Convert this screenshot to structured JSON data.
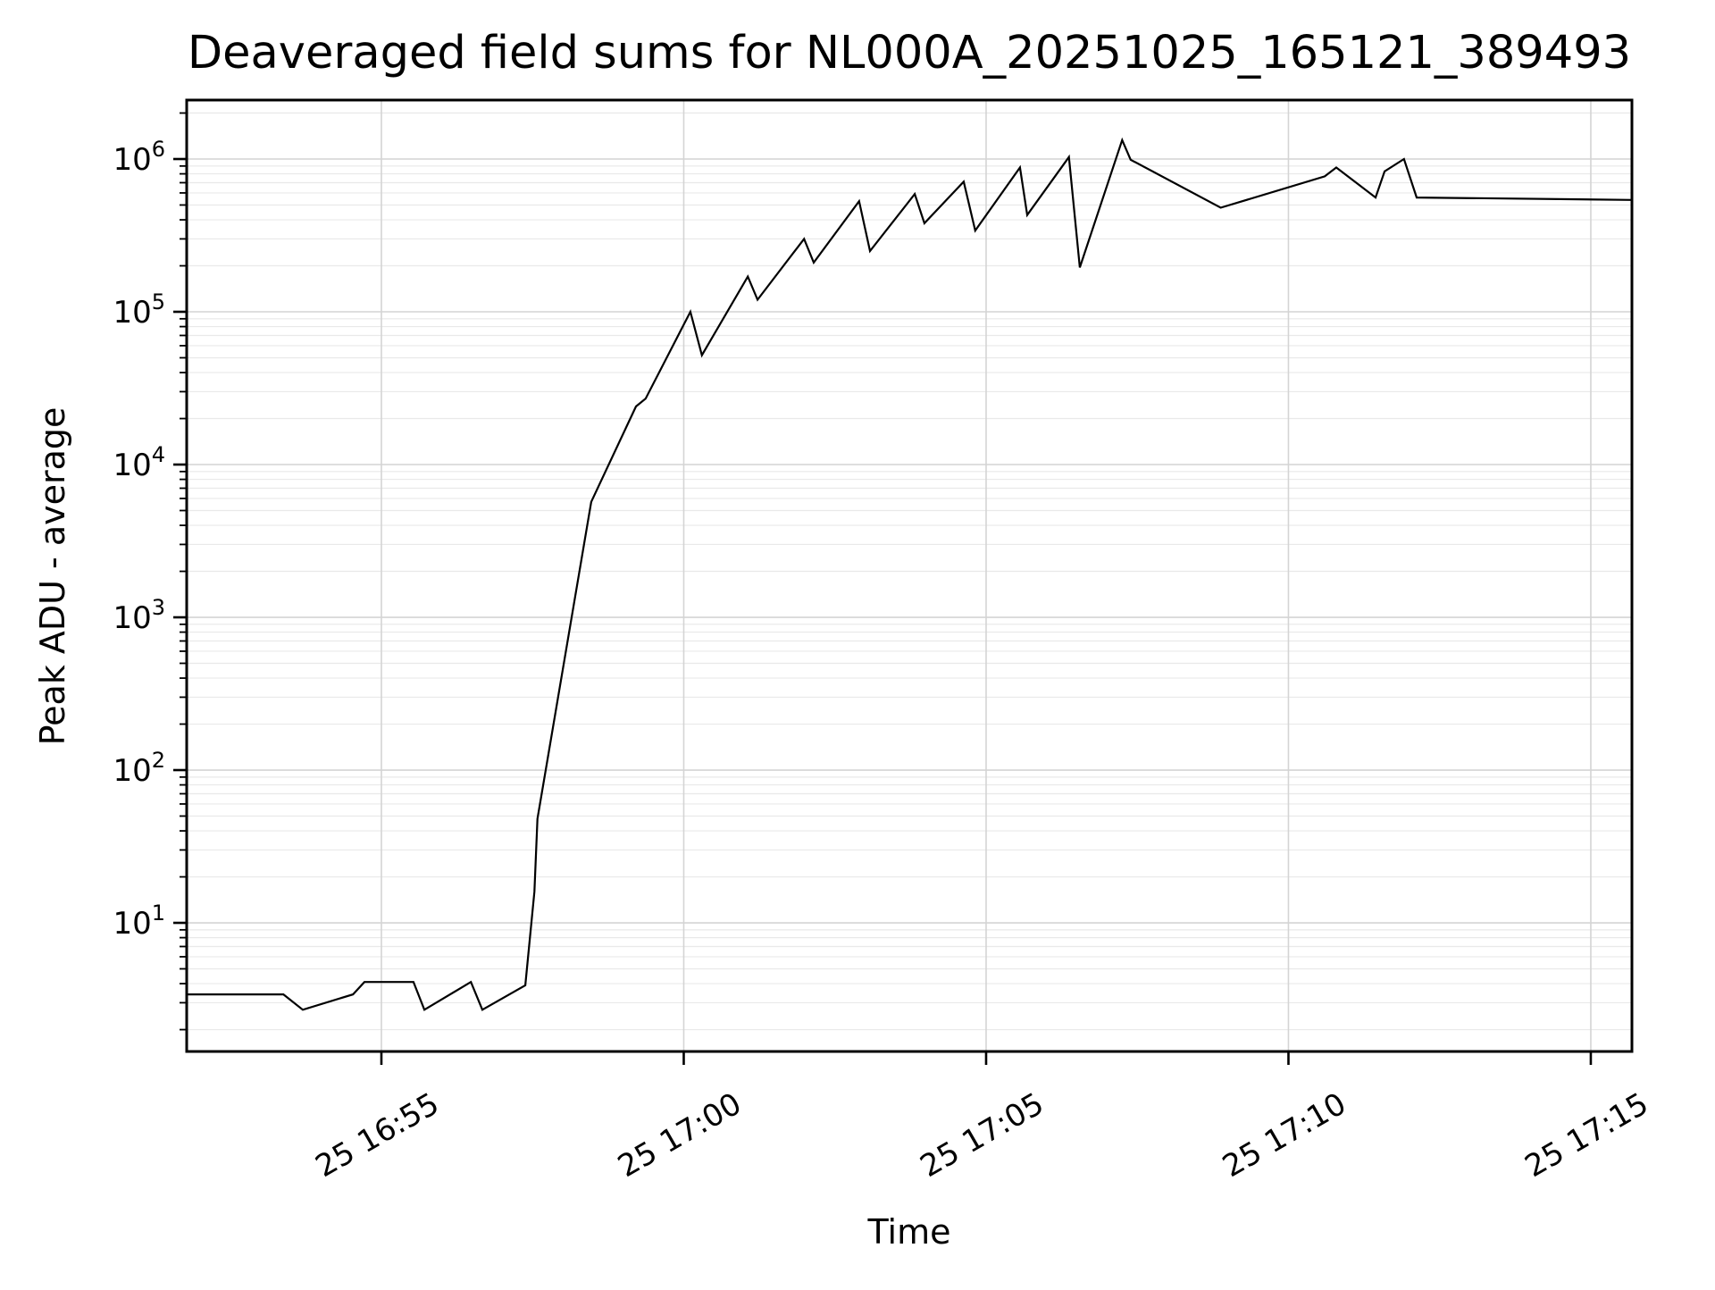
{
  "page": {
    "background": "#ffffff"
  },
  "chart_data": {
    "type": "line",
    "title": "Deaveraged field sums for NL000A_20251025_165121_389493",
    "xlabel": "Time",
    "ylabel": "Peak ADU - average",
    "yscale": "log",
    "grid": "both",
    "legend": "none",
    "x_unit": "minutes after 2025-10-25 16:50 (labels show day-of-month and HH:MM)",
    "xlim": [
      1.78,
      25.68
    ],
    "ylim_log10": [
      0.158,
      6.386
    ],
    "x_ticks": [
      {
        "t": 5,
        "label": "25 16:55"
      },
      {
        "t": 10,
        "label": "25 17:00"
      },
      {
        "t": 15,
        "label": "25 17:05"
      },
      {
        "t": 20,
        "label": "25 17:10"
      },
      {
        "t": 25,
        "label": "25 17:15"
      }
    ],
    "y_tick_base": "10",
    "y_tick_exponents": [
      6,
      5,
      4,
      3,
      2,
      1
    ],
    "colors": {
      "line": "#000000",
      "spine": "#000000",
      "tick": "#000000",
      "grid_major": "#d4d4d4",
      "grid_minor": "#e9e9e9",
      "background": "#ffffff"
    },
    "series": [
      {
        "points": [
          [
            1.78,
            3.4
          ],
          [
            3.38,
            3.4
          ],
          [
            3.7,
            2.7
          ],
          [
            4.53,
            3.4
          ],
          [
            4.72,
            4.1
          ],
          [
            5.53,
            4.1
          ],
          [
            5.71,
            2.7
          ],
          [
            6.48,
            4.1
          ],
          [
            6.67,
            2.7
          ],
          [
            7.38,
            3.9
          ],
          [
            7.53,
            16
          ],
          [
            7.58,
            48
          ],
          [
            8.47,
            5700
          ],
          [
            9.21,
            24000
          ],
          [
            9.37,
            27000
          ],
          [
            10.11,
            100000
          ],
          [
            10.3,
            52000
          ],
          [
            11.06,
            170000
          ],
          [
            11.22,
            120000
          ],
          [
            11.99,
            300000
          ],
          [
            12.15,
            210000
          ],
          [
            12.9,
            530000
          ],
          [
            13.08,
            250000
          ],
          [
            13.82,
            590000
          ],
          [
            13.98,
            380000
          ],
          [
            14.63,
            710000
          ],
          [
            14.82,
            340000
          ],
          [
            15.56,
            880000
          ],
          [
            15.68,
            430000
          ],
          [
            16.37,
            1030000
          ],
          [
            16.55,
            195000
          ],
          [
            17.25,
            1330000
          ],
          [
            17.39,
            990000
          ],
          [
            18.88,
            480000
          ],
          [
            20.6,
            770000
          ],
          [
            20.79,
            880000
          ],
          [
            21.44,
            560000
          ],
          [
            21.59,
            830000
          ],
          [
            21.91,
            1000000
          ],
          [
            22.12,
            560000
          ],
          [
            25.68,
            540000
          ]
        ]
      }
    ]
  }
}
